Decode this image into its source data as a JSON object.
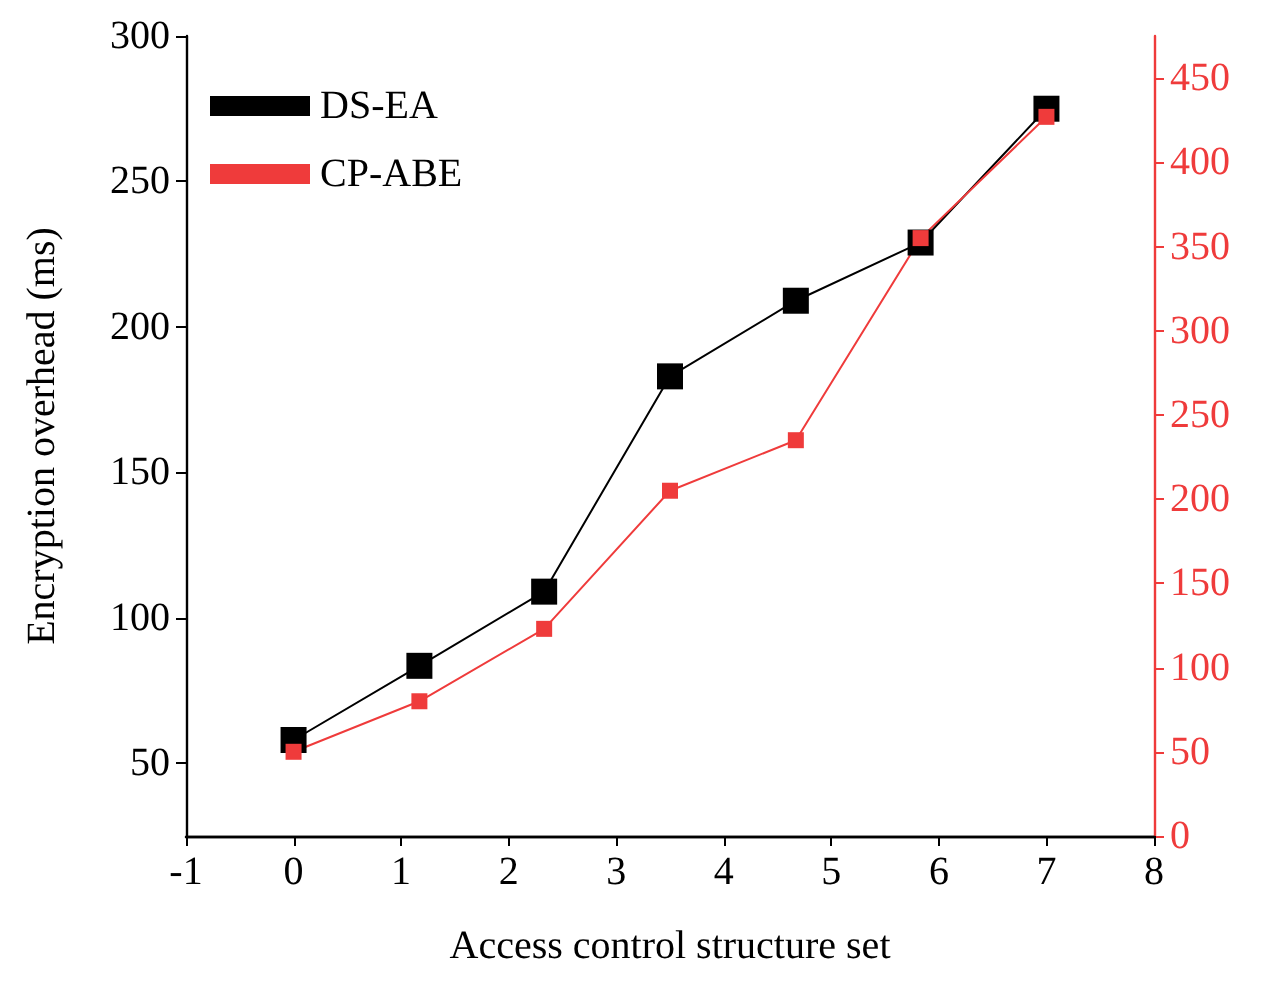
{
  "chart_data": {
    "type": "line",
    "xlabel": "Access control structure set",
    "ylabel": "Encryption overhead (ms)",
    "x": [
      0,
      1.17,
      2.33,
      3.5,
      4.67,
      5.83,
      7
    ],
    "series": [
      {
        "name": "DS-EA",
        "color": "#000000",
        "values": [
          58,
          83.5,
          109,
          183,
          209,
          229,
          275
        ]
      },
      {
        "name": "CP-ABE",
        "color": "#ef3b3b",
        "axis": "y2",
        "values": [
          50,
          80,
          123,
          205,
          235,
          355,
          427
        ]
      }
    ],
    "xlim": [
      -1,
      8
    ],
    "xticks": [
      -1,
      0,
      1,
      2,
      3,
      4,
      5,
      6,
      7,
      8
    ],
    "ylim": [
      25,
      300
    ],
    "yticks": [
      50,
      100,
      150,
      200,
      250,
      300
    ],
    "y2lim": [
      0,
      475
    ],
    "y2ticks": [
      0,
      50,
      100,
      150,
      200,
      250,
      300,
      350,
      400,
      450
    ],
    "legend": "top left",
    "marker": "square",
    "line_style": "solid",
    "grid": false
  }
}
